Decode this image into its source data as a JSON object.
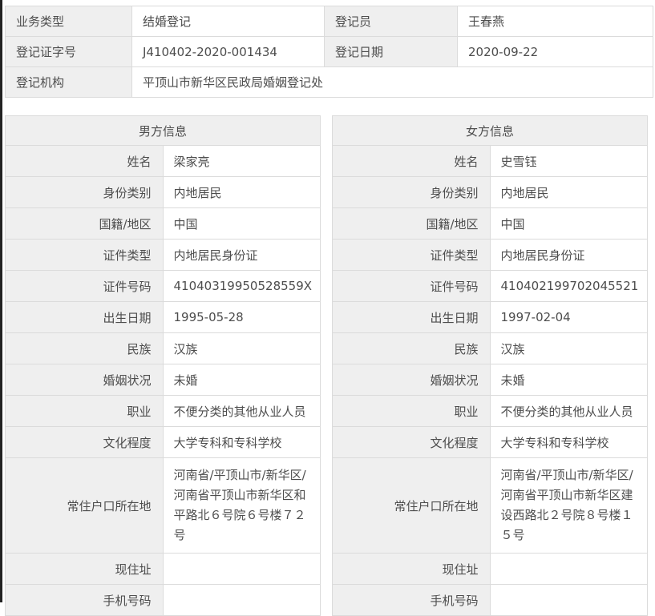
{
  "colors": {
    "label_bg": "#efefef",
    "cell_border": "#dbdbdb",
    "text": "#4d4d4d",
    "page_edge": "#232323"
  },
  "summary": {
    "rows": [
      {
        "l1": "业务类型",
        "v1": "结婚登记",
        "l2": "登记员",
        "v2": "王春燕"
      },
      {
        "l1": "登记证字号",
        "v1": "J410402-2020-001434",
        "l2": "登记日期",
        "v2": "2020-09-22"
      },
      {
        "l1": "登记机构",
        "v1": "平顶山市新华区民政局婚姻登记处"
      }
    ]
  },
  "male": {
    "title": "男方信息",
    "fields": [
      {
        "label": "姓名",
        "value": "梁家亮"
      },
      {
        "label": "身份类别",
        "value": "内地居民"
      },
      {
        "label": "国籍/地区",
        "value": "中国"
      },
      {
        "label": "证件类型",
        "value": "内地居民身份证"
      },
      {
        "label": "证件号码",
        "value": "41040319950528559X"
      },
      {
        "label": "出生日期",
        "value": "1995-05-28"
      },
      {
        "label": "民族",
        "value": "汉族"
      },
      {
        "label": "婚姻状况",
        "value": "未婚"
      },
      {
        "label": "职业",
        "value": "不便分类的其他从业人员"
      },
      {
        "label": "文化程度",
        "value": "大学专科和专科学校"
      },
      {
        "label": "常住户口所在地",
        "value": "河南省/平顶山市/新华区/河南省平顶山市新华区和平路北６号院６号楼７２号"
      },
      {
        "label": "现住址",
        "value": ""
      },
      {
        "label": "手机号码",
        "value": ""
      }
    ]
  },
  "female": {
    "title": "女方信息",
    "fields": [
      {
        "label": "姓名",
        "value": "史雪钰"
      },
      {
        "label": "身份类别",
        "value": "内地居民"
      },
      {
        "label": "国籍/地区",
        "value": "中国"
      },
      {
        "label": "证件类型",
        "value": "内地居民身份证"
      },
      {
        "label": "证件号码",
        "value": "410402199702045521"
      },
      {
        "label": "出生日期",
        "value": "1997-02-04"
      },
      {
        "label": "民族",
        "value": "汉族"
      },
      {
        "label": "婚姻状况",
        "value": "未婚"
      },
      {
        "label": "职业",
        "value": "不便分类的其他从业人员"
      },
      {
        "label": "文化程度",
        "value": "大学专科和专科学校"
      },
      {
        "label": "常住户口所在地",
        "value": "河南省/平顶山市/新华区/河南省平顶山市新华区建设西路北２号院８号楼１５号"
      },
      {
        "label": "现住址",
        "value": ""
      },
      {
        "label": "手机号码",
        "value": ""
      }
    ]
  }
}
